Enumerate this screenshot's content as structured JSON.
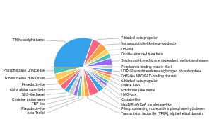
{
  "chart_data": {
    "type": "pie",
    "categories": [
      "TM beta/alpha barrel",
      "7-bladed beta-propeller",
      "Immunoglobulin-like beta-sandwich",
      "OB-fold",
      "Double-stranded beta helix",
      "S-adenosyl-L-methionine dependent methyltransferases",
      "Periplasmic binding protein-like I",
      "UDP-Glycosyltransferases/glycogen phosphorylase",
      "DHS-like NAD/FAD-binding domain",
      "6-bladed beta-propeller",
      "DNase I-like",
      "PH domain-like barrel",
      "HMG-box",
      "Cystatin-like",
      "NagB/RpiA CoA transferase-like",
      "P-loop containing nucleoside triphosphate hydrolases",
      "Transcription factor IIA (TFIIA), alpha-helical domain",
      "beta-Trefoil",
      "Flavodoxin-like",
      "TBP-like",
      "Cysteine proteinases",
      "SH3-like barrel",
      "alpha alpha superhelix",
      "Ferredoxin-like",
      "Ribonuclease H-like motif",
      "Phospholipase D/nuclease"
    ],
    "values": [
      28,
      4.5,
      4.0,
      2.5,
      2.5,
      3.5,
      2.0,
      1.8,
      1.5,
      1.5,
      1.5,
      1.5,
      1.5,
      1.5,
      3.0,
      5.0,
      2.5,
      1.8,
      2.0,
      2.0,
      2.5,
      2.5,
      3.0,
      3.0,
      3.5,
      3.5
    ]
  }
}
